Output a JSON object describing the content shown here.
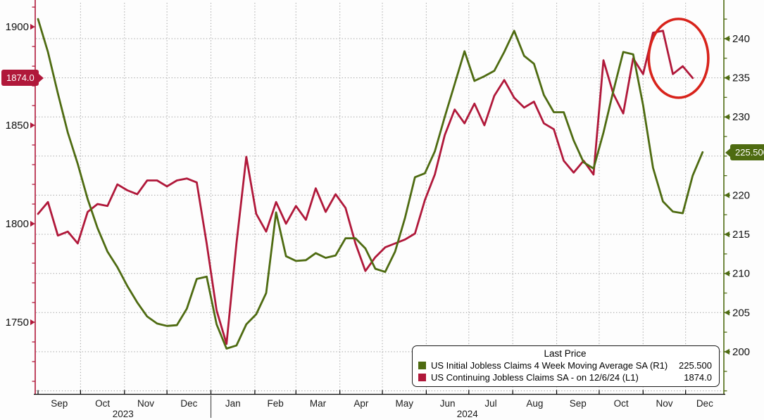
{
  "colors": {
    "initial_claims_green": "#4e6b11",
    "continuing_claims_crimson": "#b0183a",
    "annotation_red": "#d8231b",
    "grid": "#a8a8a8",
    "axis_text": "#111111",
    "x_text": "#1a1a1a",
    "background": "#fdfdfd"
  },
  "badges": {
    "left": {
      "value": "1874.0",
      "color": "#b0183a"
    },
    "right": {
      "value": "225.500",
      "color": "#4e6b11"
    }
  },
  "legend": {
    "title": "Last Price",
    "rows": [
      {
        "swatch": "#4e6b11",
        "label": "US Initial Jobless Claims 4 Week Moving Average SA  (R1)",
        "value": "225.500"
      },
      {
        "swatch": "#b0183a",
        "label": "US Continuing Jobless Claims SA -  on 12/6/24  (L1)",
        "value": "1874.0"
      }
    ]
  },
  "chart_data": {
    "type": "line",
    "title": "",
    "x_axis": {
      "start": "2023-08-30",
      "end": "2024-12-28",
      "month_labels": [
        "Sep",
        "Oct",
        "Nov",
        "Dec",
        "Jan",
        "Feb",
        "Mar",
        "Apr",
        "May",
        "Jun",
        "Jul",
        "Aug",
        "Sep",
        "Oct",
        "Nov",
        "Dec"
      ],
      "first_month": "2023-09",
      "year_labels": [
        {
          "text": "2023",
          "span_start": "2023-08-30",
          "span_end": "2024-01-01"
        },
        {
          "text": "2024",
          "span_start": "2024-01-01",
          "span_end": "2024-12-28"
        }
      ]
    },
    "left_axis": {
      "id": "L1",
      "color": "#b0183a",
      "ylim": [
        1713.4,
        1913.6
      ],
      "major_ticks": [
        1900,
        1850,
        1800,
        1750
      ],
      "minor_step": 10,
      "last_price": 1874.0
    },
    "right_axis": {
      "id": "R1",
      "color": "#4e6b11",
      "ylim": [
        194.56,
        244.94
      ],
      "major_ticks": [
        240,
        235,
        230,
        220,
        215,
        210,
        205,
        200
      ],
      "gridline_values": [
        240,
        235,
        230,
        225,
        220,
        215,
        210,
        205,
        200,
        195
      ],
      "minor_step": 2.5,
      "last_price": 225.5
    },
    "series": [
      {
        "name": "US Initial Jobless Claims 4 Week Moving Average SA",
        "axis": "R1",
        "color": "#4e6b11",
        "start_date": "2023-09-01",
        "interval_days": 7,
        "values": [
          242.5,
          238.3,
          233,
          228,
          224,
          219.5,
          215.8,
          212.8,
          210.8,
          208.4,
          206.3,
          204.5,
          203.6,
          203.3,
          203.4,
          205.5,
          209.3,
          209.6,
          203.5,
          200.4,
          200.8,
          203.5,
          204.8,
          207.5,
          217.8,
          212.2,
          211.6,
          211.7,
          212.6,
          212,
          212.3,
          214.5,
          214.5,
          213.2,
          210.6,
          210.2,
          212.8,
          217.1,
          222.3,
          222.8,
          225.6,
          230,
          234.2,
          238.4,
          234.6,
          235.2,
          235.9,
          238.3,
          241,
          237.8,
          236.8,
          232.8,
          230.6,
          230.6,
          227,
          224.2,
          223.4,
          228,
          233.3,
          238.3,
          238,
          231.5,
          223.5,
          219.2,
          217.9,
          217.7,
          222.5,
          225.5
        ]
      },
      {
        "name": "US Continuing Jobless Claims SA",
        "axis": "L1",
        "color": "#b0183a",
        "start_date": "2023-09-01",
        "interval_days": 7,
        "values": [
          1805,
          1811,
          1794,
          1796,
          1790,
          1806,
          1810,
          1809,
          1820,
          1817,
          1815,
          1822,
          1822,
          1819,
          1822,
          1823,
          1821,
          1790,
          1756,
          1739,
          1790,
          1834,
          1805,
          1796,
          1811,
          1800,
          1809,
          1802,
          1818,
          1806,
          1815,
          1808,
          1790,
          1776,
          1783,
          1788,
          1790,
          1792,
          1795,
          1812,
          1825,
          1845,
          1858,
          1851,
          1861,
          1850,
          1865,
          1873,
          1864,
          1859,
          1862,
          1851,
          1848,
          1832,
          1826,
          1832,
          1825,
          1883,
          1866,
          1856,
          1884,
          1876,
          1897,
          1898,
          1876,
          1880,
          1874
        ]
      }
    ],
    "annotation": {
      "type": "ellipse",
      "color": "#d8231b",
      "axis": "L1",
      "center_date": "2024-11-26",
      "center_value": 1884,
      "rx_days": 21,
      "ry_value": 20
    }
  }
}
